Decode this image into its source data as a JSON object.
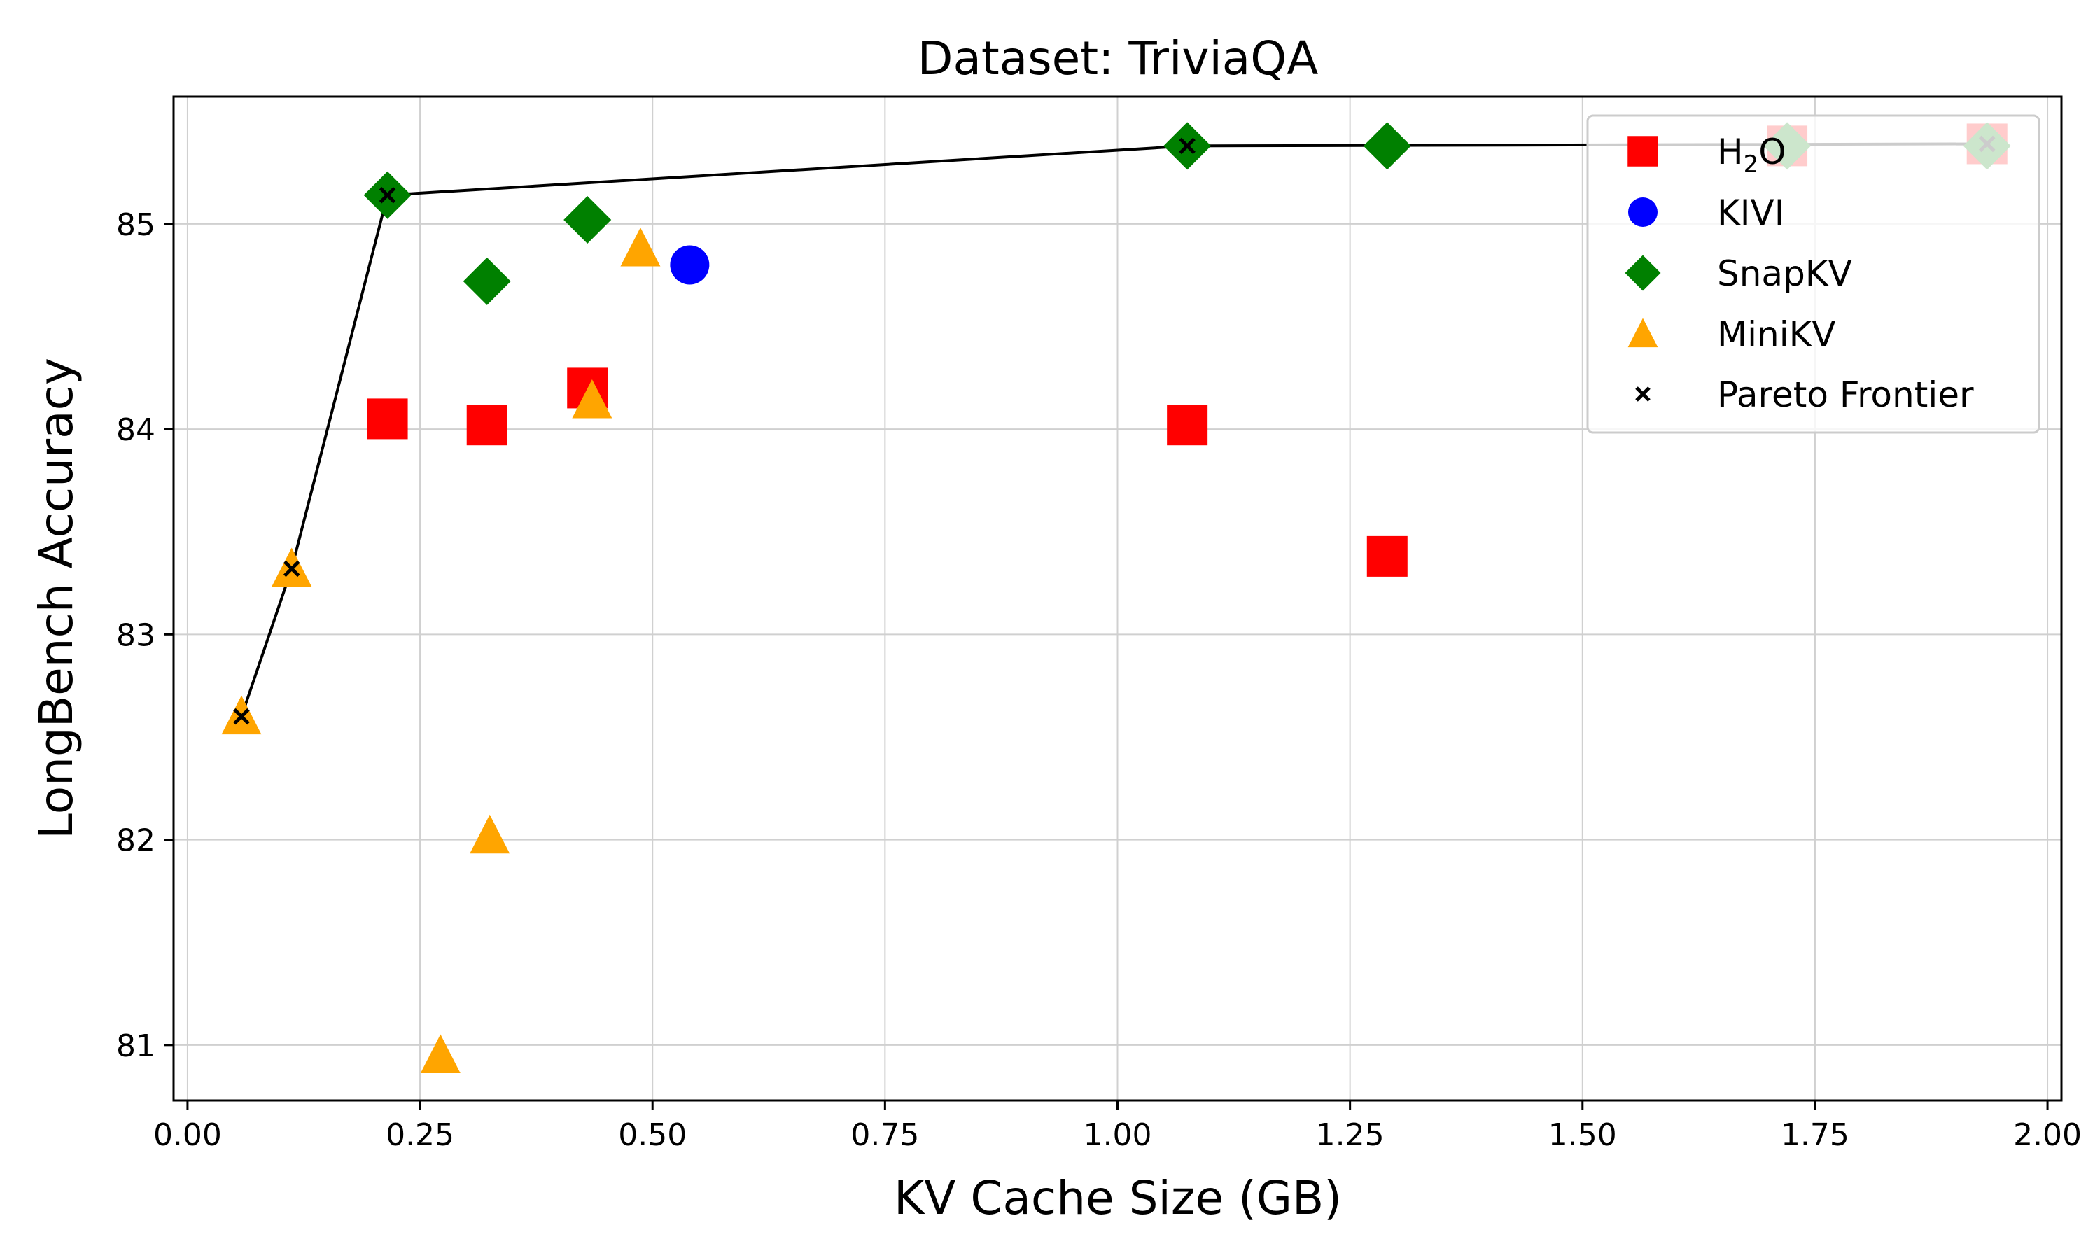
{
  "chart_data": {
    "type": "scatter",
    "title": "Dataset: TriviaQA",
    "xlabel": "KV Cache Size (GB)",
    "ylabel": "LongBench Accuracy",
    "xlim": [
      -0.015,
      2.015
    ],
    "ylim": [
      80.73,
      85.62
    ],
    "xticks": [
      0.0,
      0.25,
      0.5,
      0.75,
      1.0,
      1.25,
      1.5,
      1.75,
      2.0
    ],
    "xtick_labels": [
      "0.00",
      "0.25",
      "0.50",
      "0.75",
      "1.00",
      "1.25",
      "1.50",
      "1.75",
      "2.00"
    ],
    "yticks": [
      81,
      82,
      83,
      84,
      85
    ],
    "ytick_labels": [
      "81",
      "82",
      "83",
      "84",
      "85"
    ],
    "grid": true,
    "legend_position": "top-right",
    "series": [
      {
        "name": "H2O",
        "marker": "square",
        "color": "#ff0000",
        "x": [
          0.215,
          0.322,
          0.43,
          1.075,
          1.29,
          1.72,
          1.935
        ],
        "y": [
          84.05,
          84.02,
          84.2,
          84.02,
          83.38,
          85.38,
          85.39
        ]
      },
      {
        "name": "KIVI",
        "marker": "circle",
        "color": "#0000ff",
        "x": [
          0.54
        ],
        "y": [
          84.8
        ]
      },
      {
        "name": "SnapKV",
        "marker": "diamond",
        "color": "#008000",
        "x": [
          0.215,
          0.322,
          0.43,
          1.075,
          1.29,
          1.72,
          1.935
        ],
        "y": [
          85.14,
          84.72,
          85.02,
          85.38,
          85.38,
          85.38,
          85.38
        ]
      },
      {
        "name": "MiniKV",
        "marker": "triangle",
        "color": "#ffa500",
        "x": [
          0.058,
          0.112,
          0.272,
          0.325,
          0.435,
          0.487
        ],
        "y": [
          82.6,
          83.32,
          80.95,
          82.02,
          84.14,
          84.88
        ]
      },
      {
        "name": "Pareto Frontier",
        "marker": "x",
        "color": "#000000",
        "line": true,
        "x": [
          0.058,
          0.112,
          0.215,
          1.075,
          1.935
        ],
        "y": [
          82.6,
          83.32,
          85.14,
          85.38,
          85.39
        ]
      }
    ],
    "legend": [
      {
        "label_main": "H",
        "label_sub": "2",
        "label_tail": "O",
        "marker": "square",
        "color": "#ff0000"
      },
      {
        "label_main": "KIVI",
        "label_sub": "",
        "label_tail": "",
        "marker": "circle",
        "color": "#0000ff"
      },
      {
        "label_main": "SnapKV",
        "label_sub": "",
        "label_tail": "",
        "marker": "diamond",
        "color": "#008000"
      },
      {
        "label_main": "MiniKV",
        "label_sub": "",
        "label_tail": "",
        "marker": "triangle",
        "color": "#ffa500"
      },
      {
        "label_main": "Pareto Frontier",
        "label_sub": "",
        "label_tail": "",
        "marker": "x",
        "color": "#000000"
      }
    ]
  }
}
